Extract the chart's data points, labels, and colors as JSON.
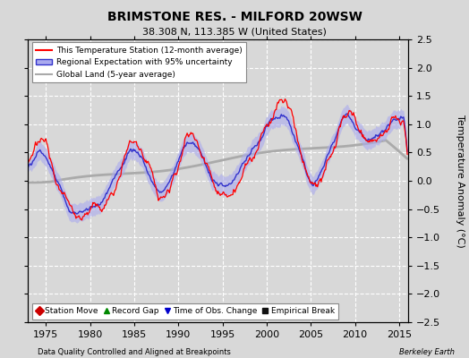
{
  "title": "BRIMSTONE RES. - MILFORD 20WSW",
  "subtitle": "38.308 N, 113.385 W (United States)",
  "ylabel": "Temperature Anomaly (°C)",
  "xlabel_left": "Data Quality Controlled and Aligned at Breakpoints",
  "xlabel_right": "Berkeley Earth",
  "ylim": [
    -2.5,
    2.5
  ],
  "xlim": [
    1973.0,
    2016.0
  ],
  "yticks": [
    -2.5,
    -2,
    -1.5,
    -1,
    -0.5,
    0,
    0.5,
    1,
    1.5,
    2,
    2.5
  ],
  "xticks": [
    1975,
    1980,
    1985,
    1990,
    1995,
    2000,
    2005,
    2010,
    2015
  ],
  "bg_color": "#d8d8d8",
  "plot_bg_color": "#d8d8d8",
  "grid_color": "#ffffff",
  "station_color": "#ff0000",
  "regional_color": "#3333cc",
  "regional_fill_color": "#aaaaee",
  "global_color": "#aaaaaa",
  "seed": 12345
}
